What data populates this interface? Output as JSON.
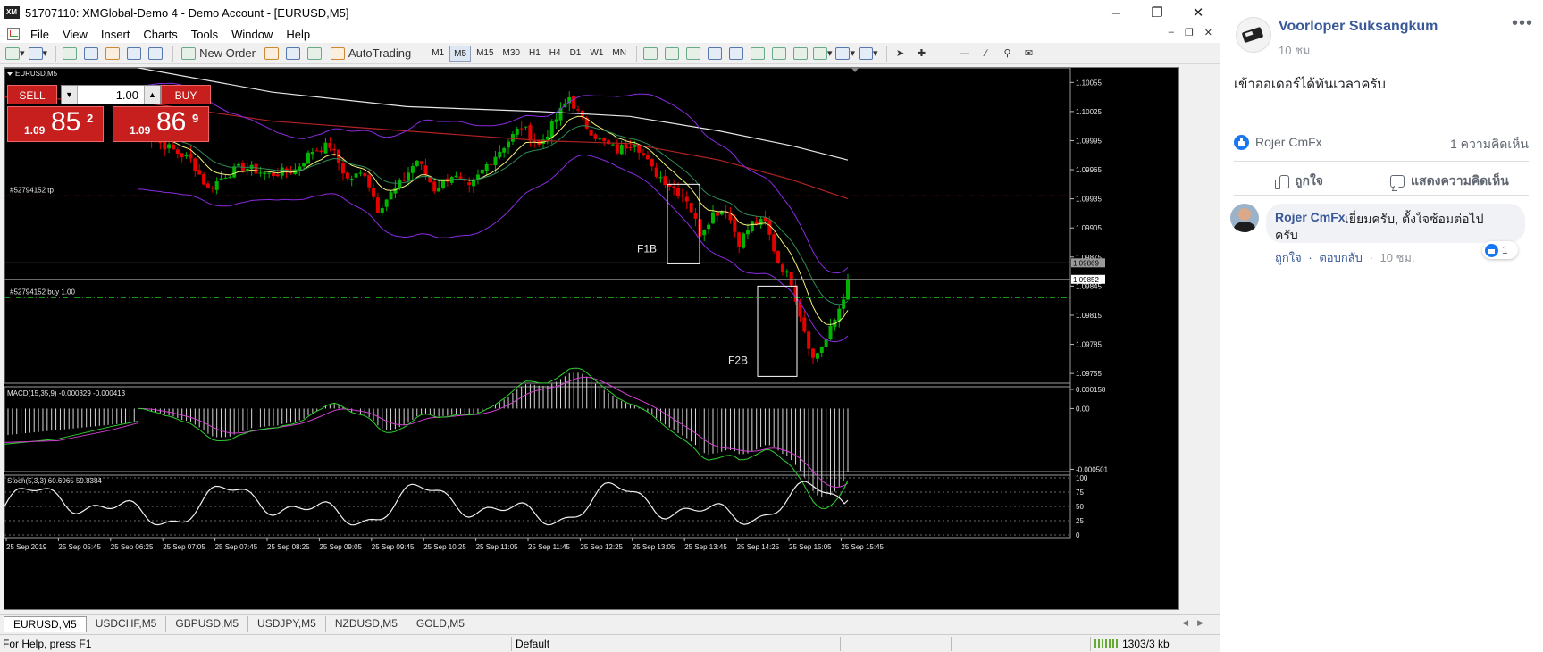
{
  "window": {
    "title": "51707110: XMGlobal-Demo 4 - Demo Account - [EURUSD,M5]",
    "logo_text": "XM"
  },
  "menu": {
    "items": [
      "File",
      "View",
      "Insert",
      "Charts",
      "Tools",
      "Window",
      "Help"
    ]
  },
  "toolbar": {
    "new_order_label": "New Order",
    "autotrading_label": "AutoTrading",
    "timeframes": [
      "M1",
      "M5",
      "M15",
      "M30",
      "H1",
      "H4",
      "D1",
      "W1",
      "MN"
    ],
    "active_timeframe": "M5"
  },
  "order_panel": {
    "sell_label": "SELL",
    "buy_label": "BUY",
    "lot_value": "1.00",
    "sell_price": {
      "prefix": "1.09",
      "big": "85",
      "sup": "2"
    },
    "buy_price": {
      "prefix": "1.09",
      "big": "86",
      "sup": "9"
    }
  },
  "chart_data": {
    "type": "candlestick",
    "symbol_label": "EURUSD,M5",
    "indicators": {
      "macd_label": "MACD(15,35,9) -0.000329 -0.000413",
      "stoch_label": "Stoch(5,3,3) 60.6965 59.8384"
    },
    "price_axis": {
      "ticks": [
        "1.10055",
        "1.10025",
        "1.09995",
        "1.09965",
        "1.09935",
        "1.09905",
        "1.09875",
        "1.09845",
        "1.09815",
        "1.09785",
        "1.09755"
      ],
      "ylim": [
        1.09745,
        1.1007
      ],
      "bid_label": "1.09852",
      "grey_label": "1.09869"
    },
    "macd_axis": {
      "ticks": [
        "0.000158",
        "0.00",
        "-0.000501"
      ]
    },
    "stoch_axis": {
      "ticks": [
        "100",
        "75",
        "50",
        "25",
        "0"
      ]
    },
    "time_axis": {
      "ticks": [
        "25 Sep 2019",
        "25 Sep 05:45",
        "25 Sep 06:25",
        "25 Sep 07:05",
        "25 Sep 07:45",
        "25 Sep 08:25",
        "25 Sep 09:05",
        "25 Sep 09:45",
        "25 Sep 10:25",
        "25 Sep 11:05",
        "25 Sep 11:45",
        "25 Sep 12:25",
        "25 Sep 13:05",
        "25 Sep 13:45",
        "25 Sep 14:25",
        "25 Sep 15:05",
        "25 Sep 15:45"
      ]
    },
    "lines": {
      "tp_label": "#52794152 tp",
      "tp_price": 1.09938,
      "buy_label": "#52794152 buy 1.00",
      "buy_price": 1.09833
    },
    "annotations": [
      {
        "label": "F1B"
      },
      {
        "label": "F2B"
      }
    ],
    "colors": {
      "bull": "#00b400",
      "bear": "#e60000",
      "ma_fast": "#f2f27a",
      "ma_mid": "#2e8b57",
      "ma_slow_red": "#b22222",
      "ma_slow_white": "#e6e6e6",
      "bands": "#8a2be2",
      "macd_signal": "#d040d0",
      "macd_line": "#2fd02f",
      "tp_line": "#d21e1e",
      "buy_line": "#1eaa1e"
    }
  },
  "symbol_tabs": [
    "EURUSD,M5",
    "USDCHF,M5",
    "GBPUSD,M5",
    "USDJPY,M5",
    "NZDUSD,M5",
    "GOLD,M5"
  ],
  "status": {
    "help": "For Help, press F1",
    "profile": "Default",
    "traffic": "1303/3 kb"
  },
  "facebook": {
    "author": "Voorloper Suksangkum",
    "time": "10 ชม.",
    "post_text": "เข้าออเดอร์ได้ทันเวลาครับ",
    "liker": "Rojer CmFx",
    "comment_count": "1 ความคิดเห็น",
    "like_action": "ถูกใจ",
    "comment_action": "แสดงความคิดเห็น",
    "comment": {
      "author": "Rojer CmFx",
      "text_line1": "เยี่ยมครับ, ตั้งใจซ้อมต่อไป",
      "text_line2": "ครับ",
      "reaction_count": "1",
      "like_link": "ถูกใจ",
      "reply_link": "ตอบกลับ",
      "time": "10 ชม."
    }
  }
}
